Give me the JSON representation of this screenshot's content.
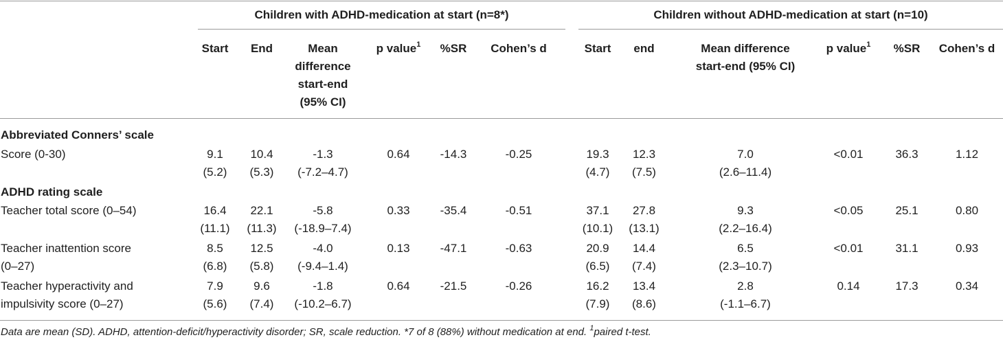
{
  "groups": {
    "with_med": "Children with ADHD-medication at start (n=8*)",
    "without_med": "Children without ADHD-medication at start (n=10)"
  },
  "headers": {
    "with": {
      "start": "Start",
      "end": "End",
      "mean_diff": [
        "Mean",
        "difference",
        "start-end",
        "(95% CI)"
      ],
      "pvalue": "p value",
      "pvalue_sup": "1",
      "sr": "%SR",
      "cohen": "Cohen’s d"
    },
    "without": {
      "start": "Start",
      "end": "end",
      "mean_diff": [
        "Mean difference",
        "start-end (95% CI)"
      ],
      "pvalue": "p value",
      "pvalue_sup": "1",
      "sr": "%SR",
      "cohen": "Cohen’s d"
    }
  },
  "sections": [
    {
      "title": "Abbreviated Conners’ scale",
      "rows": [
        {
          "label": [
            "Score (0-30)"
          ],
          "with": {
            "start": [
              "9.1",
              "(5.2)"
            ],
            "end": [
              "10.4",
              "(5.3)"
            ],
            "diff": [
              "-1.3",
              "(-7.2–4.7)"
            ],
            "p": "0.64",
            "sr": "-14.3",
            "d": "-0.25"
          },
          "without": {
            "start": [
              "19.3",
              "(4.7)"
            ],
            "end": [
              "12.3",
              "(7.5)"
            ],
            "diff": [
              "7.0",
              "(2.6–11.4)"
            ],
            "p": "<0.01",
            "sr": "36.3",
            "d": "1.12"
          }
        }
      ]
    },
    {
      "title": "ADHD rating scale",
      "rows": [
        {
          "label": [
            "Teacher total score (0–54)"
          ],
          "with": {
            "start": [
              "16.4",
              "(11.1)"
            ],
            "end": [
              "22.1",
              "(11.3)"
            ],
            "diff": [
              "-5.8",
              "(-18.9–7.4)"
            ],
            "p": "0.33",
            "sr": "-35.4",
            "d": "-0.51"
          },
          "without": {
            "start": [
              "37.1",
              "(10.1)"
            ],
            "end": [
              "27.8",
              "(13.1)"
            ],
            "diff": [
              "9.3",
              "(2.2–16.4)"
            ],
            "p": "<0.05",
            "sr": "25.1",
            "d": "0.80"
          }
        },
        {
          "label": [
            "Teacher inattention score",
            "(0–27)"
          ],
          "with": {
            "start": [
              "8.5",
              "(6.8)"
            ],
            "end": [
              "12.5",
              "(5.8)"
            ],
            "diff": [
              "-4.0",
              "(-9.4–1.4)"
            ],
            "p": "0.13",
            "sr": "-47.1",
            "d": "-0.63"
          },
          "without": {
            "start": [
              "20.9",
              "(6.5)"
            ],
            "end": [
              "14.4",
              "(7.4)"
            ],
            "diff": [
              "6.5",
              "(2.3–10.7)"
            ],
            "p": "<0.01",
            "sr": "31.1",
            "d": "0.93"
          }
        },
        {
          "label": [
            "Teacher hyperactivity and",
            "impulsivity score (0–27)"
          ],
          "with": {
            "start": [
              "7.9",
              "(5.6)"
            ],
            "end": [
              "9.6",
              "(7.4)"
            ],
            "diff": [
              "-1.8",
              "(-10.2–6.7)"
            ],
            "p": "0.64",
            "sr": "-21.5",
            "d": "-0.26"
          },
          "without": {
            "start": [
              "16.2",
              "(7.9)"
            ],
            "end": [
              "13.4",
              "(8.6)"
            ],
            "diff": [
              "2.8",
              "(-1.1–6.7)"
            ],
            "p": "0.14",
            "sr": "17.3",
            "d": "0.34"
          }
        }
      ]
    }
  ],
  "footnote": {
    "text": "Data are mean (SD). ADHD, attention-deficit/hyperactivity disorder; SR, scale reduction. *7 of 8 (88%) without medication at end. ",
    "sup": "1",
    "after": "paired t-test."
  }
}
